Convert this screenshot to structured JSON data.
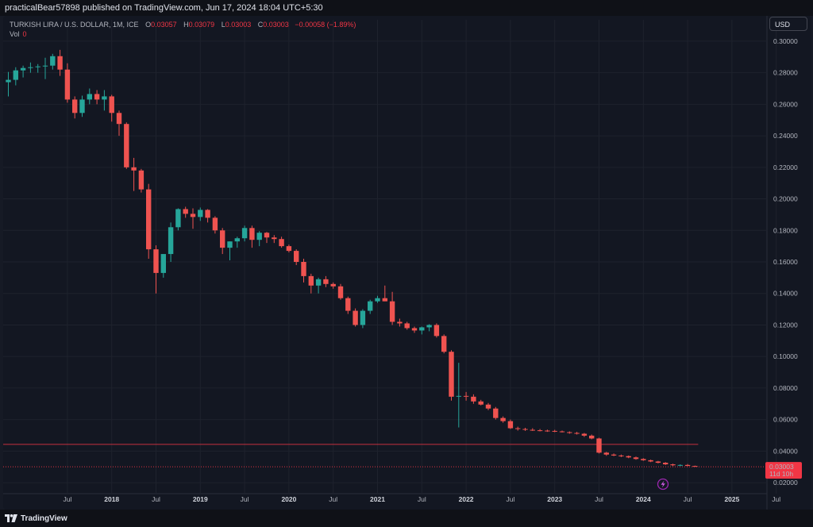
{
  "header": {
    "published_line": "practicalBear57898 published on TradingView.com, Jun 17, 2024 18:04 UTC+5:30"
  },
  "legend": {
    "symbol": "TURKISH LIRA / U.S. DOLLAR, 1M, ICE",
    "open_label": "O",
    "open": "0.03057",
    "high_label": "H",
    "high": "0.03079",
    "low_label": "L",
    "low": "0.03003",
    "close_label": "C",
    "close": "0.03003",
    "change": "−0.00058 (−1.89%)",
    "vol_label": "Vol",
    "vol_value": "0"
  },
  "currency_button": "USD",
  "footer": {
    "brand": "TradingView"
  },
  "colors": {
    "up": "#26a69a",
    "down": "#f23645",
    "down_body": "#ef5350",
    "grid": "#1e222d",
    "price_line": "#f23645",
    "axis_text": "#b2b5be"
  },
  "price_badge": {
    "price": "0.03003",
    "countdown": "11d 10h"
  },
  "chart_data": {
    "type": "candlestick",
    "title": "TURKISH LIRA / U.S. DOLLAR, 1M, ICE",
    "ylim": [
      0.014,
      0.306
    ],
    "y_ticks": [
      "0.30000",
      "0.28000",
      "0.26000",
      "0.24000",
      "0.22000",
      "0.20000",
      "0.18000",
      "0.16000",
      "0.14000",
      "0.12000",
      "0.10000",
      "0.08000",
      "0.06000",
      "0.04000",
      "0.02000"
    ],
    "x_ticks": [
      {
        "label": "Jul",
        "year": false,
        "index": 8
      },
      {
        "label": "2018",
        "year": true,
        "index": 14
      },
      {
        "label": "Jul",
        "year": false,
        "index": 20
      },
      {
        "label": "2019",
        "year": true,
        "index": 26
      },
      {
        "label": "Jul",
        "year": false,
        "index": 32
      },
      {
        "label": "2020",
        "year": true,
        "index": 38
      },
      {
        "label": "Jul",
        "year": false,
        "index": 44
      },
      {
        "label": "2021",
        "year": true,
        "index": 50
      },
      {
        "label": "Jul",
        "year": false,
        "index": 56
      },
      {
        "label": "2022",
        "year": true,
        "index": 62
      },
      {
        "label": "Jul",
        "year": false,
        "index": 68
      },
      {
        "label": "2023",
        "year": true,
        "index": 74
      },
      {
        "label": "Jul",
        "year": false,
        "index": 80
      },
      {
        "label": "2024",
        "year": true,
        "index": 86
      },
      {
        "label": "Jul",
        "year": false,
        "index": 92
      },
      {
        "label": "2025",
        "year": true,
        "index": 98
      },
      {
        "label": "Jul",
        "year": false,
        "index": 104
      }
    ],
    "reference_lines": [
      0.0443,
      0.03003
    ],
    "candles": [
      [
        0.274,
        0.2805,
        0.265,
        0.2755
      ],
      [
        0.2755,
        0.2835,
        0.272,
        0.2815
      ],
      [
        0.2815,
        0.2845,
        0.277,
        0.283
      ],
      [
        0.283,
        0.2865,
        0.28,
        0.2835
      ],
      [
        0.2835,
        0.2855,
        0.28,
        0.284
      ],
      [
        0.284,
        0.2895,
        0.276,
        0.2845
      ],
      [
        0.2845,
        0.292,
        0.282,
        0.2905
      ],
      [
        0.2905,
        0.2945,
        0.278,
        0.282
      ],
      [
        0.282,
        0.286,
        0.261,
        0.263
      ],
      [
        0.263,
        0.265,
        0.251,
        0.2545
      ],
      [
        0.2545,
        0.2655,
        0.252,
        0.263
      ],
      [
        0.263,
        0.27,
        0.26,
        0.2665
      ],
      [
        0.2665,
        0.269,
        0.26,
        0.263
      ],
      [
        0.263,
        0.269,
        0.256,
        0.265
      ],
      [
        0.265,
        0.266,
        0.249,
        0.2545
      ],
      [
        0.2545,
        0.256,
        0.24,
        0.2475
      ],
      [
        0.2475,
        0.2485,
        0.219,
        0.22
      ],
      [
        0.22,
        0.226,
        0.205,
        0.218
      ],
      [
        0.218,
        0.219,
        0.204,
        0.206
      ],
      [
        0.206,
        0.2095,
        0.162,
        0.168
      ],
      [
        0.168,
        0.1705,
        0.14,
        0.153
      ],
      [
        0.153,
        0.165,
        0.15,
        0.165
      ],
      [
        0.165,
        0.185,
        0.16,
        0.182
      ],
      [
        0.182,
        0.194,
        0.18,
        0.1935
      ],
      [
        0.1935,
        0.195,
        0.188,
        0.1905
      ],
      [
        0.1905,
        0.194,
        0.181,
        0.1885
      ],
      [
        0.1885,
        0.1945,
        0.186,
        0.193
      ],
      [
        0.193,
        0.1935,
        0.185,
        0.188
      ],
      [
        0.188,
        0.189,
        0.178,
        0.18
      ],
      [
        0.18,
        0.1815,
        0.165,
        0.169
      ],
      [
        0.169,
        0.173,
        0.161,
        0.173
      ],
      [
        0.173,
        0.176,
        0.169,
        0.175
      ],
      [
        0.175,
        0.183,
        0.173,
        0.1815
      ],
      [
        0.1815,
        0.183,
        0.169,
        0.174
      ],
      [
        0.174,
        0.1795,
        0.17,
        0.1785
      ],
      [
        0.1785,
        0.179,
        0.172,
        0.1755
      ],
      [
        0.1755,
        0.177,
        0.172,
        0.1745
      ],
      [
        0.1745,
        0.176,
        0.169,
        0.17
      ],
      [
        0.17,
        0.171,
        0.166,
        0.167
      ],
      [
        0.167,
        0.168,
        0.158,
        0.16
      ],
      [
        0.16,
        0.162,
        0.147,
        0.151
      ],
      [
        0.151,
        0.1525,
        0.14,
        0.145
      ],
      [
        0.145,
        0.15,
        0.14,
        0.149
      ],
      [
        0.149,
        0.151,
        0.144,
        0.146
      ],
      [
        0.146,
        0.147,
        0.143,
        0.1445
      ],
      [
        0.1445,
        0.146,
        0.136,
        0.137
      ],
      [
        0.137,
        0.138,
        0.127,
        0.129
      ],
      [
        0.129,
        0.1305,
        0.119,
        0.12
      ],
      [
        0.12,
        0.13,
        0.118,
        0.129
      ],
      [
        0.129,
        0.136,
        0.127,
        0.135
      ],
      [
        0.135,
        0.1385,
        0.134,
        0.137
      ],
      [
        0.137,
        0.145,
        0.135,
        0.135
      ],
      [
        0.135,
        0.141,
        0.12,
        0.122
      ],
      [
        0.122,
        0.124,
        0.119,
        0.121
      ],
      [
        0.121,
        0.122,
        0.117,
        0.118
      ],
      [
        0.118,
        0.119,
        0.115,
        0.1165
      ],
      [
        0.1165,
        0.119,
        0.114,
        0.1185
      ],
      [
        0.1185,
        0.1205,
        0.116,
        0.12
      ],
      [
        0.12,
        0.121,
        0.112,
        0.113
      ],
      [
        0.113,
        0.114,
        0.102,
        0.103
      ],
      [
        0.103,
        0.104,
        0.072,
        0.0745
      ],
      [
        0.0745,
        0.096,
        0.055,
        0.075
      ],
      [
        0.075,
        0.0775,
        0.072,
        0.0745
      ],
      [
        0.0745,
        0.076,
        0.07,
        0.0715
      ],
      [
        0.0715,
        0.0725,
        0.069,
        0.0695
      ],
      [
        0.0695,
        0.0705,
        0.066,
        0.067
      ],
      [
        0.067,
        0.068,
        0.06,
        0.061
      ],
      [
        0.061,
        0.062,
        0.058,
        0.059
      ],
      [
        0.059,
        0.06,
        0.054,
        0.0545
      ],
      [
        0.0545,
        0.0555,
        0.053,
        0.054
      ],
      [
        0.054,
        0.0548,
        0.0528,
        0.0535
      ],
      [
        0.0535,
        0.0545,
        0.0528,
        0.0532
      ],
      [
        0.0532,
        0.054,
        0.0525,
        0.053
      ],
      [
        0.053,
        0.0536,
        0.0522,
        0.0528
      ],
      [
        0.0528,
        0.0535,
        0.052,
        0.0525
      ],
      [
        0.0525,
        0.053,
        0.0518,
        0.052
      ],
      [
        0.052,
        0.0525,
        0.051,
        0.0515
      ],
      [
        0.0515,
        0.0522,
        0.0505,
        0.051
      ],
      [
        0.051,
        0.0515,
        0.049,
        0.0498
      ],
      [
        0.0498,
        0.0505,
        0.0475,
        0.048
      ],
      [
        0.048,
        0.0485,
        0.0385,
        0.039
      ],
      [
        0.039,
        0.0395,
        0.037,
        0.0378
      ],
      [
        0.0378,
        0.0385,
        0.0368,
        0.0372
      ],
      [
        0.0372,
        0.0378,
        0.0362,
        0.0368
      ],
      [
        0.0368,
        0.0372,
        0.0355,
        0.036
      ],
      [
        0.036,
        0.0365,
        0.0345,
        0.035
      ],
      [
        0.035,
        0.0355,
        0.0338,
        0.0342
      ],
      [
        0.0342,
        0.0346,
        0.033,
        0.0334
      ],
      [
        0.0334,
        0.0338,
        0.0322,
        0.0326
      ],
      [
        0.0326,
        0.033,
        0.0312,
        0.0316
      ],
      [
        0.0316,
        0.032,
        0.0305,
        0.031
      ],
      [
        0.031,
        0.0316,
        0.0305,
        0.0312
      ],
      [
        0.0312,
        0.0318,
        0.0304,
        0.0306
      ],
      [
        0.03057,
        0.03079,
        0.03003,
        0.03003
      ]
    ]
  }
}
